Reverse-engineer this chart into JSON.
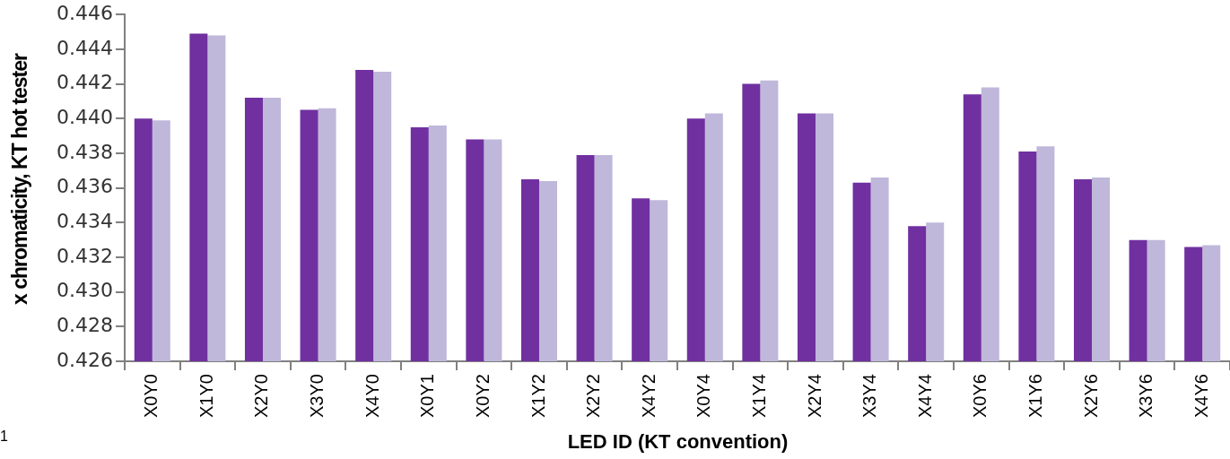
{
  "chart_data": {
    "type": "bar",
    "xlabel": "LED ID (KT convention)",
    "ylabel": "x chromaticity, KT hot tester",
    "categories": [
      "X0Y0",
      "X1Y0",
      "X2Y0",
      "X3Y0",
      "X4Y0",
      "X0Y1",
      "X0Y2",
      "X1Y2",
      "X2Y2",
      "X4Y2",
      "X0Y4",
      "X1Y4",
      "X2Y4",
      "X3Y4",
      "X4Y4",
      "X0Y6",
      "X1Y6",
      "X2Y6",
      "X3Y6",
      "X4Y6"
    ],
    "series": [
      {
        "color": "#7030a0",
        "values": [
          0.44,
          0.4449,
          0.4412,
          0.4405,
          0.4428,
          0.4395,
          0.4388,
          0.4365,
          0.4379,
          0.4354,
          0.44,
          0.442,
          0.4403,
          0.4363,
          0.4338,
          0.4414,
          0.4381,
          0.4365,
          0.433,
          0.4326
        ]
      },
      {
        "color": "#bfb8da",
        "values": [
          0.4399,
          0.4448,
          0.4412,
          0.4406,
          0.4427,
          0.4396,
          0.4388,
          0.4364,
          0.4379,
          0.4353,
          0.4403,
          0.4422,
          0.4403,
          0.4366,
          0.434,
          0.4418,
          0.4384,
          0.4366,
          0.433,
          0.4327
        ]
      }
    ],
    "ylim": [
      0.426,
      0.446
    ],
    "yticks": [
      0.426,
      0.428,
      {
        "value": 0.43,
        "label": "0.430"
      },
      0.432,
      0.434,
      0.436,
      0.438,
      {
        "value": 0.44,
        "label": "0.440"
      },
      0.442,
      0.444,
      0.446
    ],
    "grid": false,
    "legend": false,
    "annotations": [
      "1"
    ]
  }
}
